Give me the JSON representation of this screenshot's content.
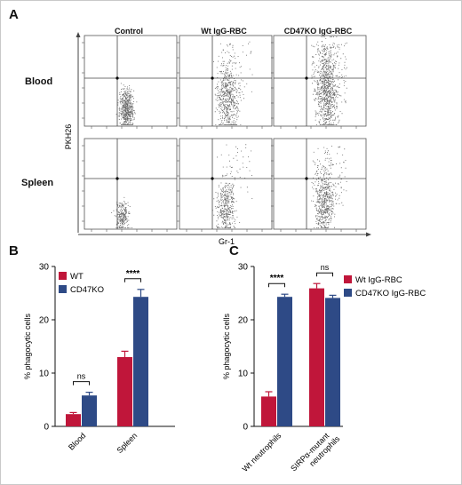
{
  "panels": {
    "a": "A",
    "b": "B",
    "c": "C"
  },
  "flow": {
    "columns": [
      "Control",
      "Wt IgG-RBC",
      "CD47KO IgG-RBC"
    ],
    "rows": [
      "Blood",
      "Spleen"
    ],
    "y_axis": "PKH26",
    "x_axis": "Gr-1"
  },
  "chart_data": [
    {
      "type": "bar",
      "panel": "B",
      "categories": [
        "Blood",
        "Spleen"
      ],
      "series": [
        {
          "name": "WT",
          "values": [
            2.3,
            13.0
          ],
          "errors": [
            0.3,
            1.1
          ],
          "color": "#c0163a"
        },
        {
          "name": "CD47KO",
          "values": [
            5.8,
            24.3
          ],
          "errors": [
            0.6,
            1.4
          ],
          "color": "#2e4a86"
        }
      ],
      "ylabel": "% phagocytic cells",
      "ylim": [
        0,
        30
      ],
      "yticks": [
        "0",
        "10",
        "20",
        "30"
      ],
      "significance": [
        "ns",
        "****"
      ],
      "legend_placement": "top-left"
    },
    {
      "type": "bar",
      "panel": "C",
      "categories": [
        "Wt neutrophils",
        "SIRPα-mutant neutrophils"
      ],
      "series": [
        {
          "name": "Wt IgG-RBC",
          "values": [
            5.6,
            25.9
          ],
          "errors": [
            0.9,
            0.9
          ],
          "color": "#c0163a"
        },
        {
          "name": "CD47KO IgG-RBC",
          "values": [
            24.3,
            24.1
          ],
          "errors": [
            0.5,
            0.5
          ],
          "color": "#2e4a86"
        }
      ],
      "ylabel": "% phagocytic cells",
      "ylim": [
        0,
        30
      ],
      "yticks": [
        "0",
        "10",
        "20",
        "30"
      ],
      "significance": [
        "****",
        "ns"
      ],
      "legend_placement": "top-right"
    }
  ]
}
